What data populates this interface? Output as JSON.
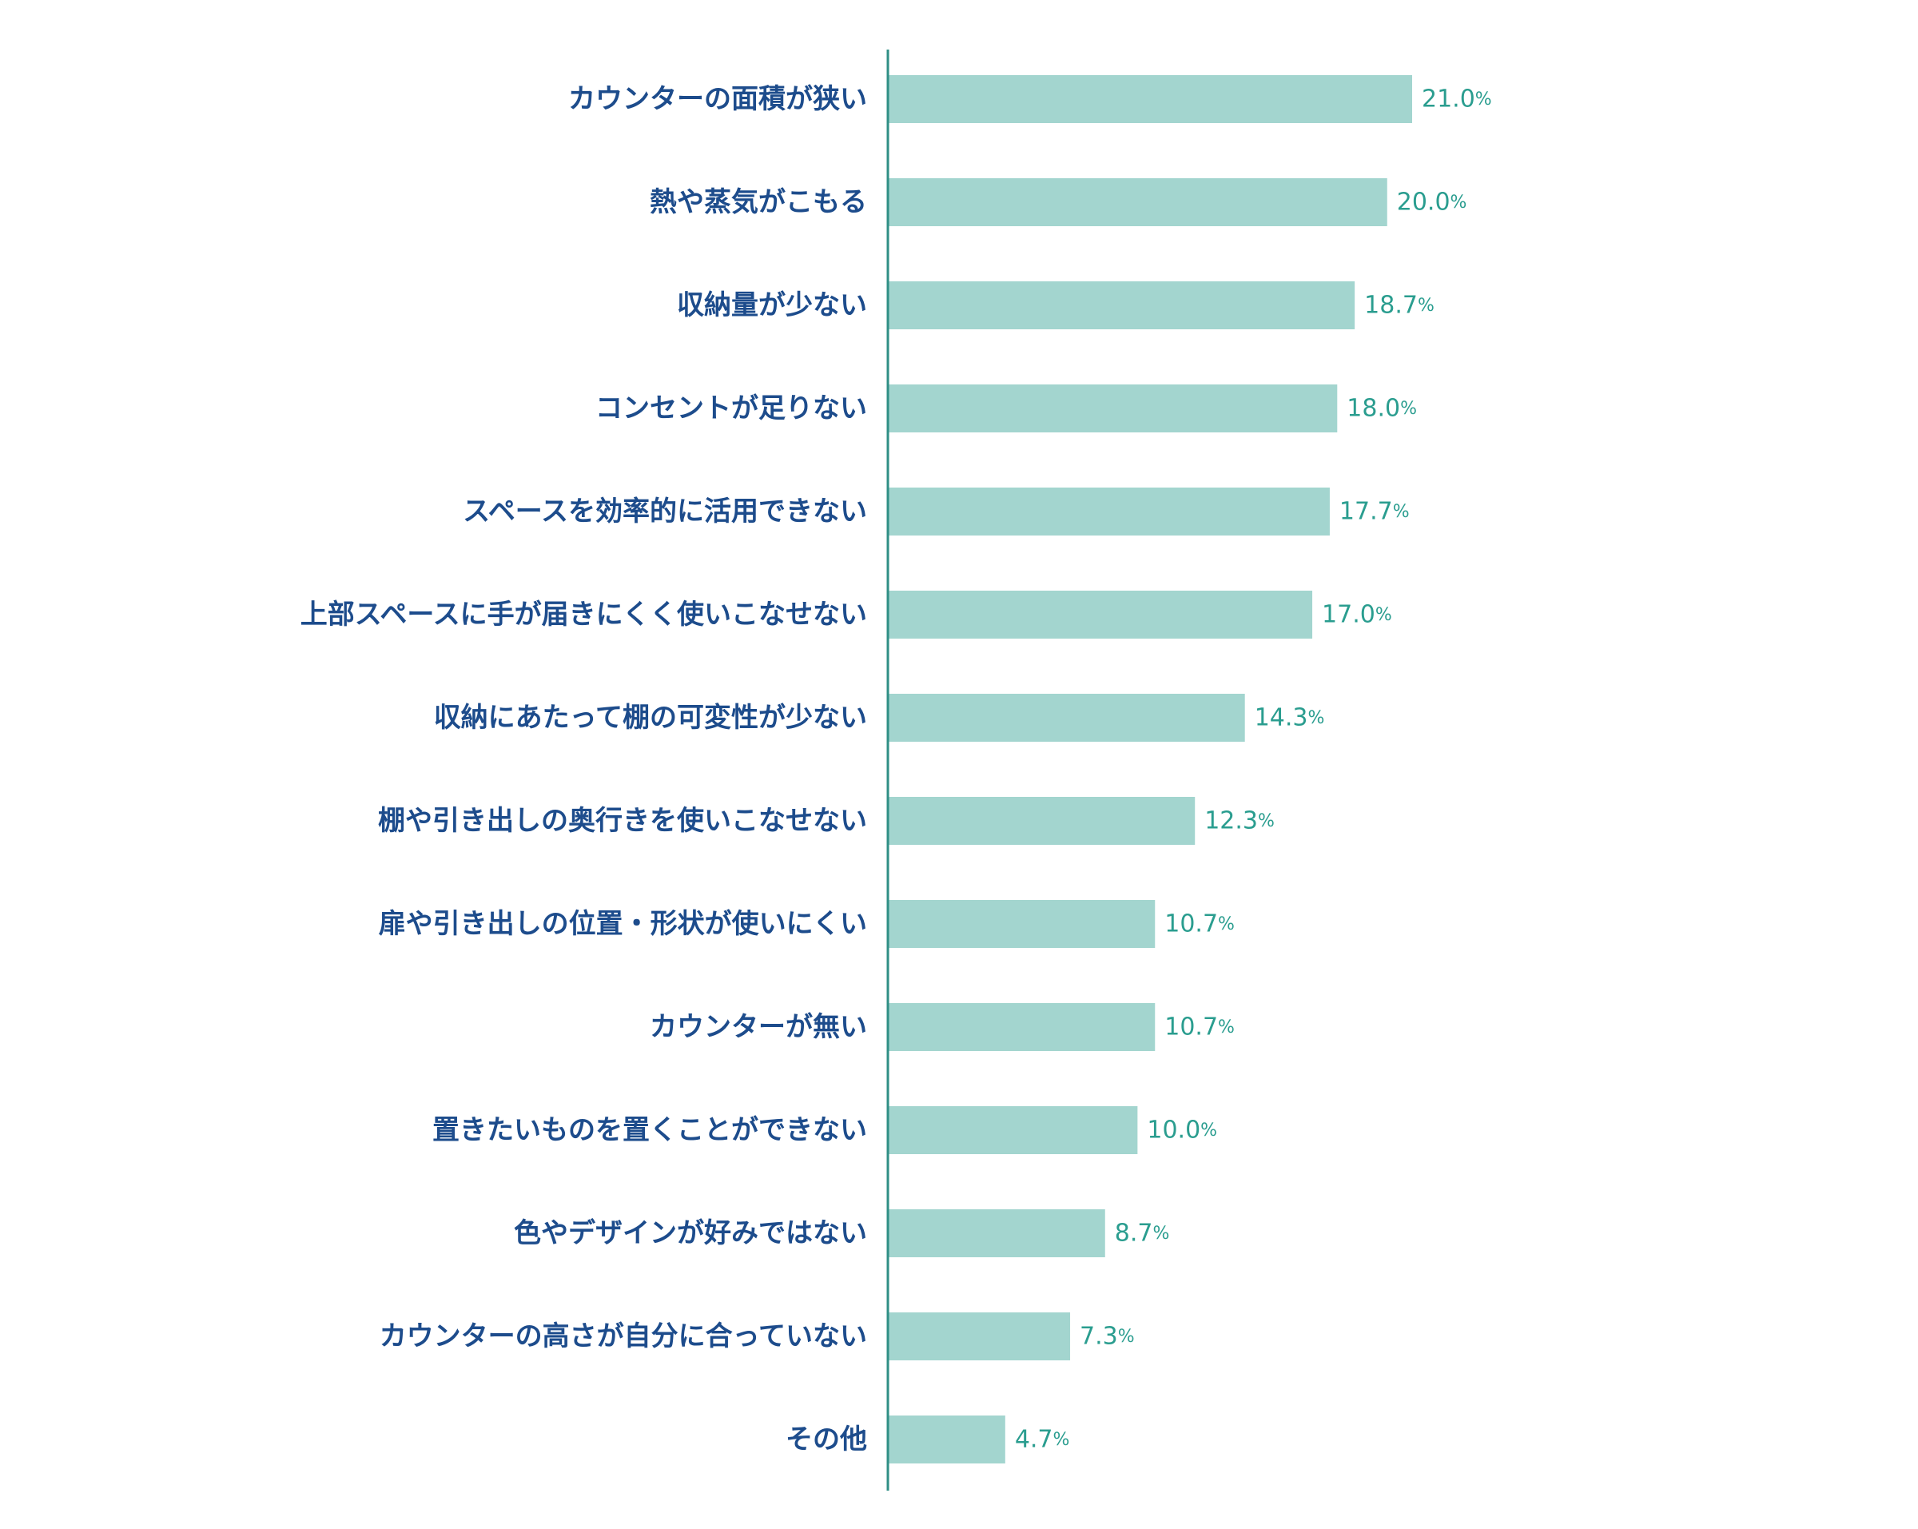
{
  "chart_data": {
    "type": "bar",
    "orientation": "horizontal",
    "categories": [
      "カウンターの面積が狭い",
      "熱や蒸気がこもる",
      "収納量が少ない",
      "コンセントが足りない",
      "スペースを効率的に活用できない",
      "上部スペースに手が届きにくく使いこなせない",
      "収納にあたって棚の可変性が少ない",
      "棚や引き出しの奥行きを使いこなせない",
      "扉や引き出しの位置・形状が使いにくい",
      "カウンターが無い",
      "置きたいものを置くことができない",
      "色やデザインが好みではない",
      "カウンターの高さが自分に合っていない",
      "その他"
    ],
    "values": [
      21.0,
      20.0,
      18.7,
      18.0,
      17.7,
      17.0,
      14.3,
      12.3,
      10.7,
      10.7,
      10.0,
      8.7,
      7.3,
      4.7
    ],
    "value_labels": [
      "21.0",
      "20.0",
      "18.7",
      "18.0",
      "17.7",
      "17.0",
      "14.3",
      "12.3",
      "10.7",
      "10.7",
      "10.0",
      "8.7",
      "7.3",
      "4.7"
    ],
    "unit": "%",
    "title": "",
    "xlabel": "",
    "ylabel": "",
    "xlim": [
      0,
      21
    ],
    "grid": false,
    "legend": "none",
    "colors": {
      "bar": "#a3d5cf",
      "axis": "#2f8f85",
      "category_text": "#1d4c8c",
      "value_text": "#2a9d8f"
    }
  }
}
